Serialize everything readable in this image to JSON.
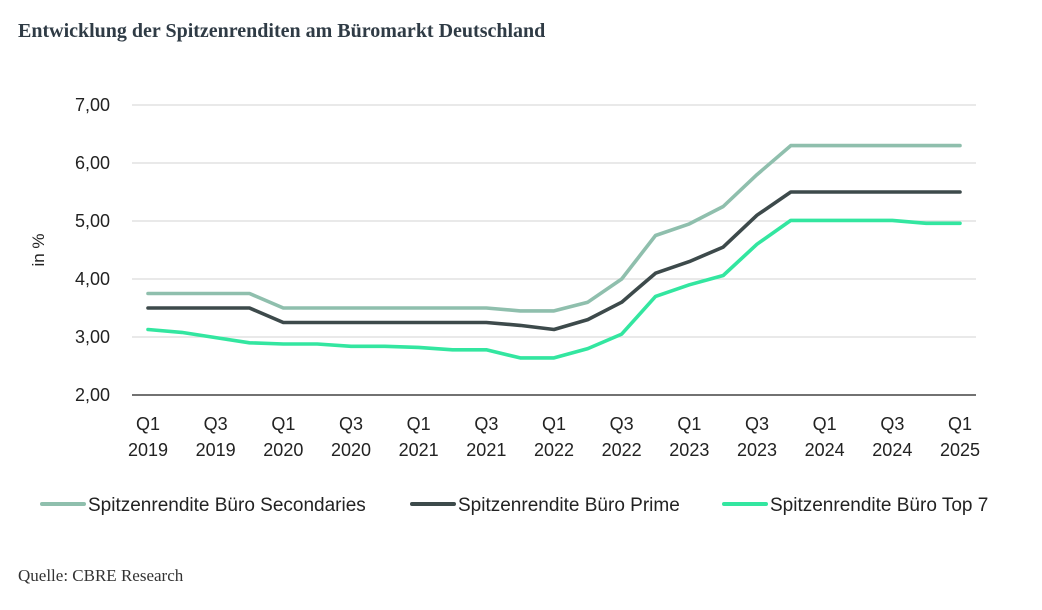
{
  "title": "Entwicklung der Spitzenrenditen am Büromarkt Deutschland",
  "source": "Quelle: CBRE Research",
  "chart_data": {
    "type": "line",
    "ylabel": "in %",
    "xlabel": "",
    "ylim": [
      2.0,
      7.0
    ],
    "yticks": [
      "2,00",
      "3,00",
      "4,00",
      "5,00",
      "6,00",
      "7,00"
    ],
    "ytick_values": [
      2,
      3,
      4,
      5,
      6,
      7
    ],
    "grid": true,
    "legend_position": "bottom",
    "categories": [
      "Q1 2019",
      "Q2 2019",
      "Q3 2019",
      "Q4 2019",
      "Q1 2020",
      "Q2 2020",
      "Q3 2020",
      "Q4 2020",
      "Q1 2021",
      "Q2 2021",
      "Q3 2021",
      "Q4 2021",
      "Q1 2022",
      "Q2 2022",
      "Q3 2022",
      "Q4 2022",
      "Q1 2023",
      "Q2 2023",
      "Q3 2023",
      "Q4 2023",
      "Q1 2024",
      "Q2 2024",
      "Q3 2024",
      "Q4 2024",
      "Q1 2025"
    ],
    "xtick_labels": [
      {
        "index": 0,
        "line1": "Q1",
        "line2": "2019"
      },
      {
        "index": 2,
        "line1": "Q3",
        "line2": "2019"
      },
      {
        "index": 4,
        "line1": "Q1",
        "line2": "2020"
      },
      {
        "index": 6,
        "line1": "Q3",
        "line2": "2020"
      },
      {
        "index": 8,
        "line1": "Q1",
        "line2": "2021"
      },
      {
        "index": 10,
        "line1": "Q3",
        "line2": "2021"
      },
      {
        "index": 12,
        "line1": "Q1",
        "line2": "2022"
      },
      {
        "index": 14,
        "line1": "Q3",
        "line2": "2022"
      },
      {
        "index": 16,
        "line1": "Q1",
        "line2": "2023"
      },
      {
        "index": 18,
        "line1": "Q3",
        "line2": "2023"
      },
      {
        "index": 20,
        "line1": "Q1",
        "line2": "2024"
      },
      {
        "index": 22,
        "line1": "Q3",
        "line2": "2024"
      },
      {
        "index": 24,
        "line1": "Q1",
        "line2": "2025"
      }
    ],
    "series": [
      {
        "name": "Spitzenrendite Büro Secondaries",
        "color": "#8fbfad",
        "values": [
          3.75,
          3.75,
          3.75,
          3.75,
          3.5,
          3.5,
          3.5,
          3.5,
          3.5,
          3.5,
          3.5,
          3.45,
          3.45,
          3.6,
          4.0,
          4.75,
          4.95,
          5.25,
          5.8,
          6.3,
          6.3,
          6.3,
          6.3,
          6.3,
          6.3
        ]
      },
      {
        "name": "Spitzenrendite Büro Prime",
        "color": "#3d4a4b",
        "values": [
          3.5,
          3.5,
          3.5,
          3.5,
          3.25,
          3.25,
          3.25,
          3.25,
          3.25,
          3.25,
          3.25,
          3.2,
          3.13,
          3.3,
          3.6,
          4.1,
          4.3,
          4.55,
          5.1,
          5.5,
          5.5,
          5.5,
          5.5,
          5.5,
          5.5
        ]
      },
      {
        "name": "Spitzenrendite Büro Top 7",
        "color": "#33e6a0",
        "values": [
          3.13,
          3.08,
          2.99,
          2.9,
          2.88,
          2.88,
          2.84,
          2.84,
          2.82,
          2.78,
          2.78,
          2.64,
          2.64,
          2.8,
          3.05,
          3.7,
          3.9,
          4.06,
          4.6,
          5.01,
          5.01,
          5.01,
          5.01,
          4.96,
          4.96
        ]
      }
    ]
  }
}
